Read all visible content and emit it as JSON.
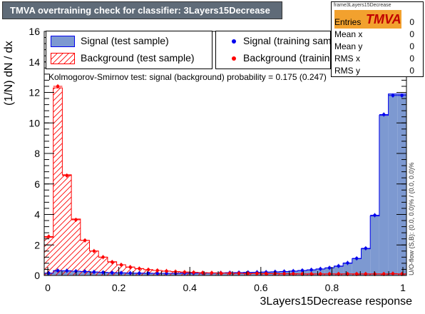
{
  "title": "TMVA overtraining check for classifier: 3Layers15Decrease",
  "stats": {
    "name": "frame3Layers15Decrease",
    "logo": "TMVA",
    "rows": [
      {
        "label": "Entries",
        "value": "0"
      },
      {
        "label": "Mean x",
        "value": "0"
      },
      {
        "label": "Mean y",
        "value": "0"
      },
      {
        "label": "RMS x",
        "value": "0"
      },
      {
        "label": "RMS y",
        "value": "0"
      }
    ]
  },
  "legend": {
    "signal_test": "Signal (test sample)",
    "background_test": "Background (test sample)",
    "signal_train": "Signal (training sample)",
    "background_train": "Background (training sample)"
  },
  "ks_text": "Kolmogorov-Smirnov test: signal (background) probability = 0.175 (0.247)",
  "overflow_text": "U/O-flow (S,B): (0.0, 0.0)% / (0.0, 0.0)%",
  "colors": {
    "signal_fill": "#7d99d1",
    "signal_line": "#0000ee",
    "background_line": "#ff0000",
    "title_bg": "#5f6b78"
  },
  "chart_data": {
    "type": "histogram",
    "xlabel": "3Layers15Decrease response",
    "ylabel": "(1/N) dN / dx",
    "xlim": [
      -0.01,
      1.01
    ],
    "ylim": [
      0,
      16
    ],
    "x_ticks": [
      0,
      0.2,
      0.4,
      0.6,
      0.8,
      1
    ],
    "y_ticks": [
      0,
      2,
      4,
      6,
      8,
      10,
      12,
      14,
      16
    ],
    "bin_edges": [
      -0.01,
      0.0155,
      0.041,
      0.0665,
      0.092,
      0.1175,
      0.143,
      0.1685,
      0.194,
      0.2195,
      0.245,
      0.2705,
      0.296,
      0.3215,
      0.347,
      0.3725,
      0.398,
      0.4235,
      0.449,
      0.4745,
      0.5,
      0.5255,
      0.551,
      0.5765,
      0.602,
      0.6275,
      0.653,
      0.6785,
      0.704,
      0.7295,
      0.755,
      0.7805,
      0.806,
      0.8315,
      0.857,
      0.8825,
      0.908,
      0.9335,
      0.959,
      0.9845,
      1.01
    ],
    "series": [
      {
        "name": "Signal (test sample)",
        "values": [
          0.15,
          0.3,
          0.3,
          0.28,
          0.25,
          0.22,
          0.2,
          0.18,
          0.17,
          0.15,
          0.15,
          0.14,
          0.14,
          0.14,
          0.14,
          0.15,
          0.15,
          0.16,
          0.16,
          0.17,
          0.18,
          0.19,
          0.2,
          0.21,
          0.22,
          0.23,
          0.25,
          0.28,
          0.32,
          0.36,
          0.42,
          0.5,
          0.6,
          0.8,
          1.1,
          1.75,
          3.9,
          10.5,
          11.9,
          11.9
        ]
      },
      {
        "name": "Background (test sample)",
        "values": [
          2.5,
          12.3,
          6.6,
          3.7,
          2.3,
          1.6,
          1.2,
          0.9,
          0.7,
          0.55,
          0.45,
          0.38,
          0.33,
          0.28,
          0.25,
          0.22,
          0.2,
          0.18,
          0.17,
          0.16,
          0.15,
          0.14,
          0.13,
          0.13,
          0.12,
          0.12,
          0.11,
          0.11,
          0.1,
          0.1,
          0.1,
          0.1,
          0.1,
          0.1,
          0.1,
          0.1,
          0.1,
          0.1,
          0.1,
          0.1
        ]
      },
      {
        "name": "Signal (training sample)",
        "values": [
          0.15,
          0.32,
          0.31,
          0.28,
          0.26,
          0.23,
          0.2,
          0.18,
          0.17,
          0.16,
          0.15,
          0.15,
          0.14,
          0.14,
          0.14,
          0.15,
          0.15,
          0.16,
          0.16,
          0.17,
          0.18,
          0.19,
          0.2,
          0.21,
          0.22,
          0.24,
          0.26,
          0.29,
          0.33,
          0.37,
          0.43,
          0.5,
          0.62,
          0.82,
          1.12,
          1.78,
          3.95,
          10.55,
          11.8,
          11.8
        ]
      },
      {
        "name": "Background (training sample)",
        "values": [
          2.55,
          12.4,
          6.55,
          3.65,
          2.3,
          1.6,
          1.2,
          0.88,
          0.7,
          0.55,
          0.45,
          0.38,
          0.33,
          0.29,
          0.25,
          0.22,
          0.2,
          0.18,
          0.17,
          0.16,
          0.15,
          0.14,
          0.13,
          0.13,
          0.12,
          0.12,
          0.11,
          0.11,
          0.1,
          0.1,
          0.1,
          0.1,
          0.1,
          0.1,
          0.1,
          0.1,
          0.1,
          0.1,
          0.12,
          0.1
        ]
      }
    ]
  }
}
